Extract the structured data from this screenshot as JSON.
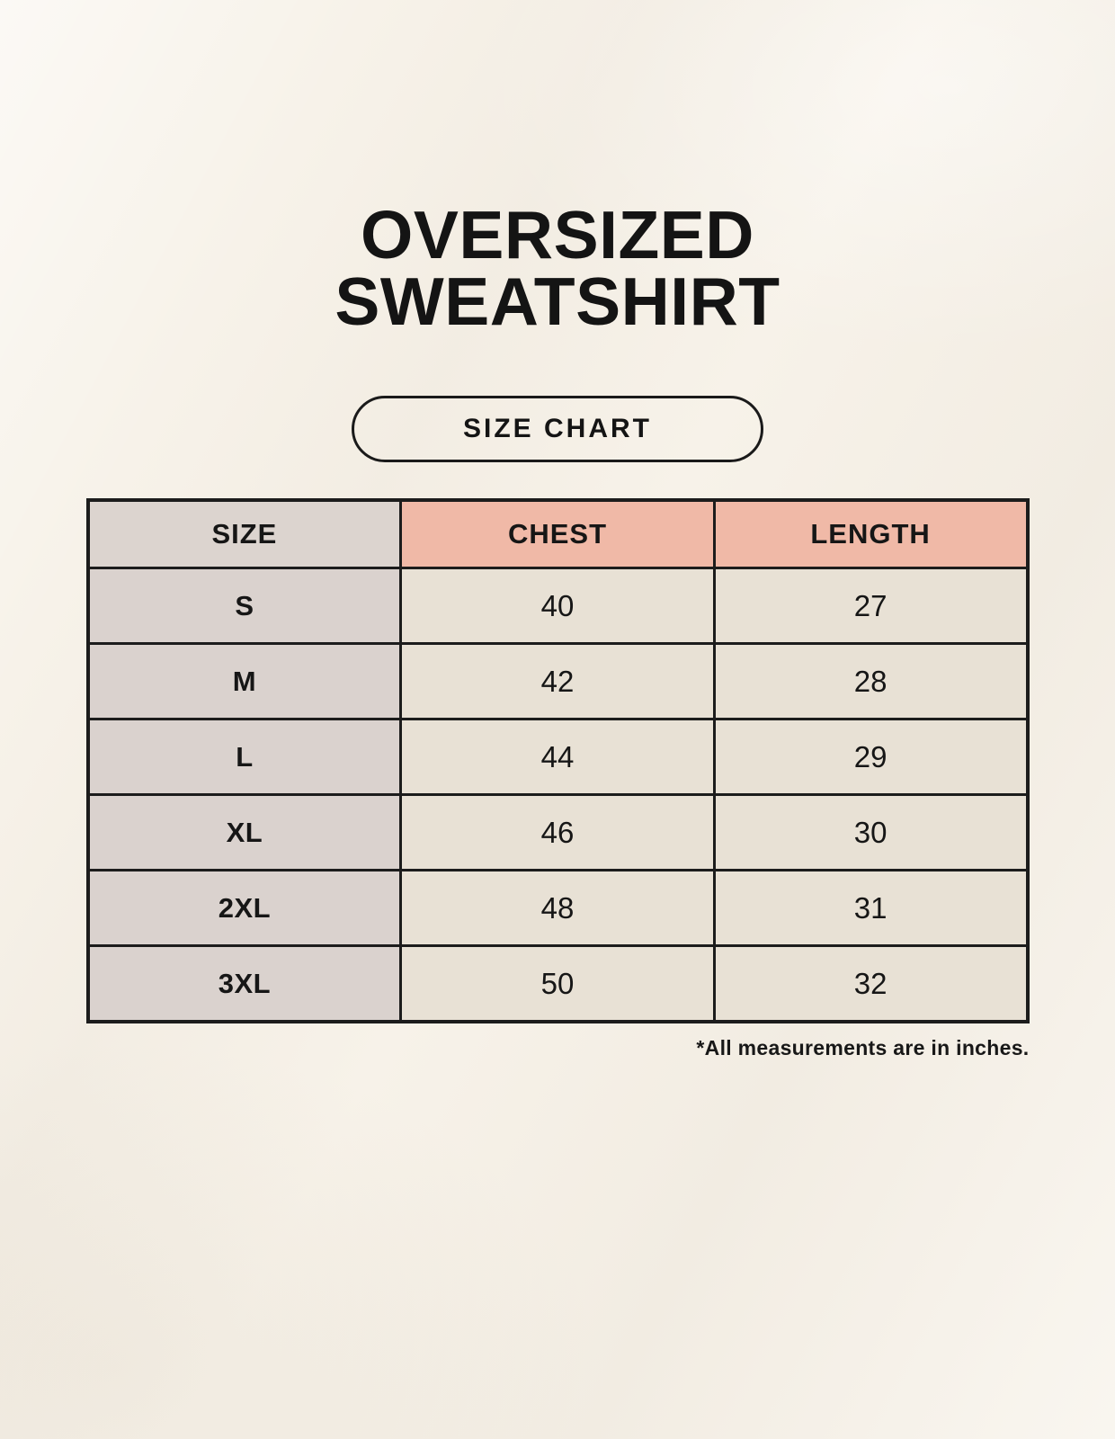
{
  "header": {
    "title_line1": "OVERSIZED",
    "title_line2": "SWEATSHIRT",
    "size_chart_button": "SIZE CHART"
  },
  "chart_data": {
    "type": "table",
    "title": "OVERSIZED SWEATSHIRT",
    "subtitle": "SIZE CHART",
    "columns": [
      "SIZE",
      "CHEST",
      "LENGTH"
    ],
    "rows": [
      [
        "S",
        40,
        27
      ],
      [
        "M",
        42,
        28
      ],
      [
        "L",
        44,
        29
      ],
      [
        "XL",
        46,
        30
      ],
      [
        "2XL",
        48,
        31
      ],
      [
        "3XL",
        50,
        32
      ]
    ],
    "units_note": "*All measurements are in inches."
  },
  "colors": {
    "background": "#f7f2e9",
    "header_size_bg": "#dcd4cf",
    "header_measure_bg": "#f0b9a7",
    "size_column_bg": "#dad2ce",
    "value_cell_bg": "#e8e1d5",
    "border": "#1c1c1c",
    "text": "#141414"
  }
}
